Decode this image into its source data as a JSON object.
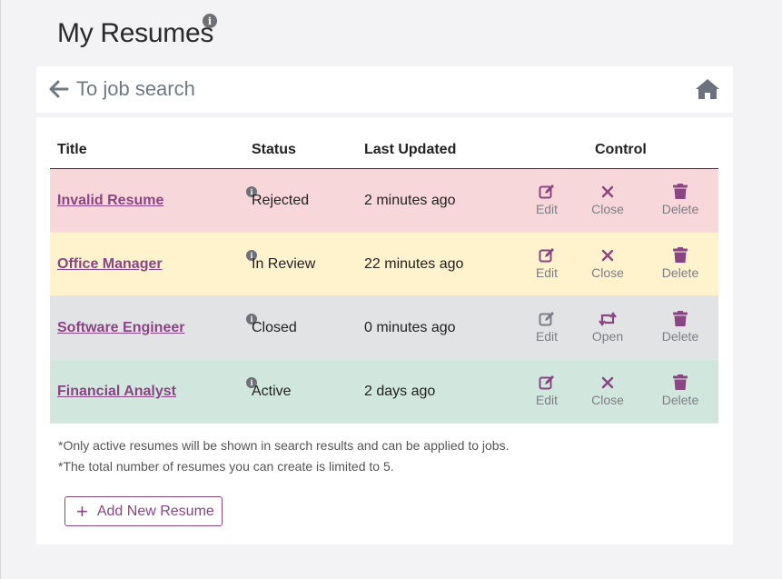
{
  "page": {
    "title": "My Resumes"
  },
  "topbar": {
    "back_label": "To job search"
  },
  "table": {
    "headers": {
      "title": "Title",
      "status": "Status",
      "updated": "Last Updated",
      "control": "Control"
    },
    "rows": [
      {
        "title": "Invalid Resume",
        "status": "Rejected",
        "updated": "2 minutes ago",
        "edit": "Edit",
        "toggle": "Close",
        "toggle_icon": "x-icon",
        "delete": "Delete",
        "color": "#f8d7da"
      },
      {
        "title": "Office Manager",
        "status": "In Review",
        "updated": "22 minutes ago",
        "edit": "Edit",
        "toggle": "Close",
        "toggle_icon": "x-icon",
        "delete": "Delete",
        "color": "#fff3cd"
      },
      {
        "title": "Software Engineer",
        "status": "Closed",
        "updated": "0 minutes ago",
        "edit": "Edit",
        "toggle": "Open",
        "toggle_icon": "retweet-icon",
        "delete": "Delete",
        "color": "#e2e3e5"
      },
      {
        "title": "Financial Analyst",
        "status": "Active",
        "updated": "2 days ago",
        "edit": "Edit",
        "toggle": "Close",
        "toggle_icon": "x-icon",
        "delete": "Delete",
        "color": "#d1e7dd"
      }
    ]
  },
  "notes": [
    "*Only active resumes will be shown in search results and can be applied to jobs.",
    "*The total number of resumes you can create is limited to 5."
  ],
  "add_button": {
    "label": "Add New Resume"
  },
  "colors": {
    "accent": "#8a4583",
    "muted": "#707883"
  }
}
